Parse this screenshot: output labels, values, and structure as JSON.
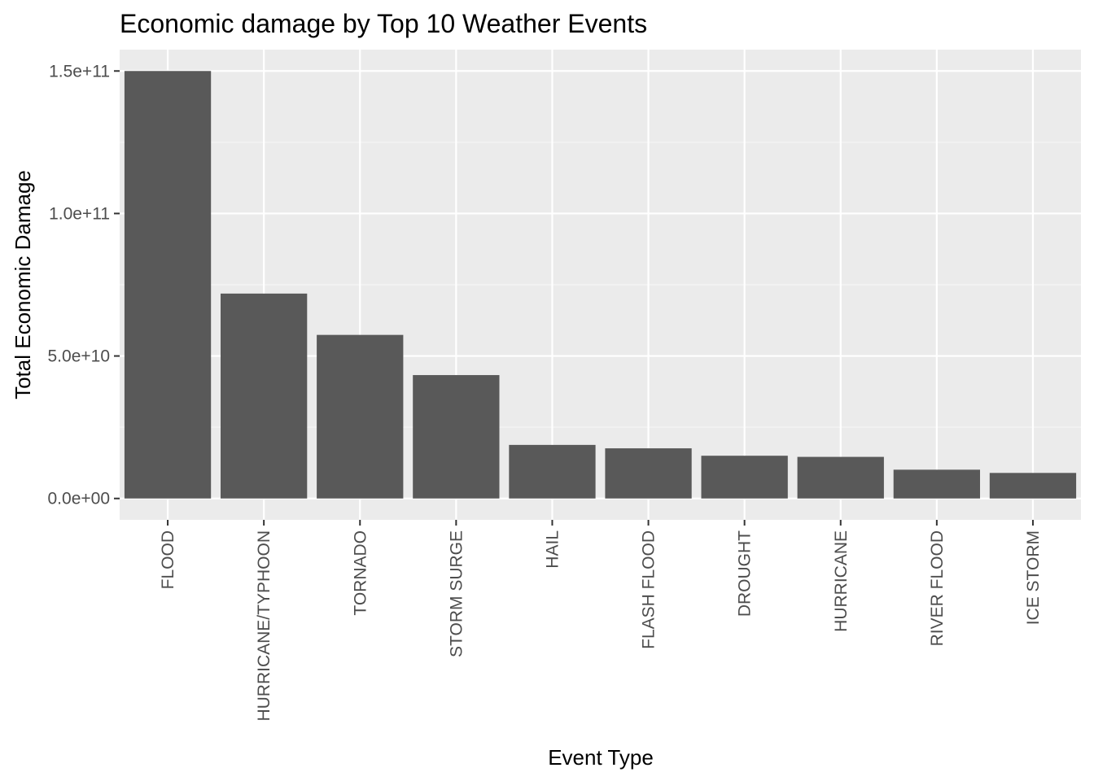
{
  "chart_data": {
    "type": "bar",
    "title": "Economic damage by Top 10 Weather Events",
    "xlabel": "Event Type",
    "ylabel": "Total Economic Damage",
    "categories": [
      "FLOOD",
      "HURRICANE/TYPHOON",
      "TORNADO",
      "STORM SURGE",
      "HAIL",
      "FLASH FLOOD",
      "DROUGHT",
      "HURRICANE",
      "RIVER FLOOD",
      "ICE STORM"
    ],
    "values": [
      150000000000,
      71900000000,
      57400000000,
      43300000000,
      18800000000,
      17600000000,
      15000000000,
      14600000000,
      10100000000,
      8970000000
    ],
    "ylim": [
      -7500000000,
      157500000000
    ],
    "y_ticks": [
      0,
      50000000000,
      100000000000,
      150000000000
    ],
    "y_tick_labels": [
      "0.0e+00",
      "5.0e+10",
      "1.0e+11",
      "1.5e+11"
    ],
    "grid": true,
    "legend": "none",
    "colors": {
      "panel_background": "#ebebeb",
      "grid_major": "#ffffff",
      "grid_minor": "#f5f5f5",
      "bar_fill": "#595959",
      "tick_color": "#333333"
    }
  }
}
